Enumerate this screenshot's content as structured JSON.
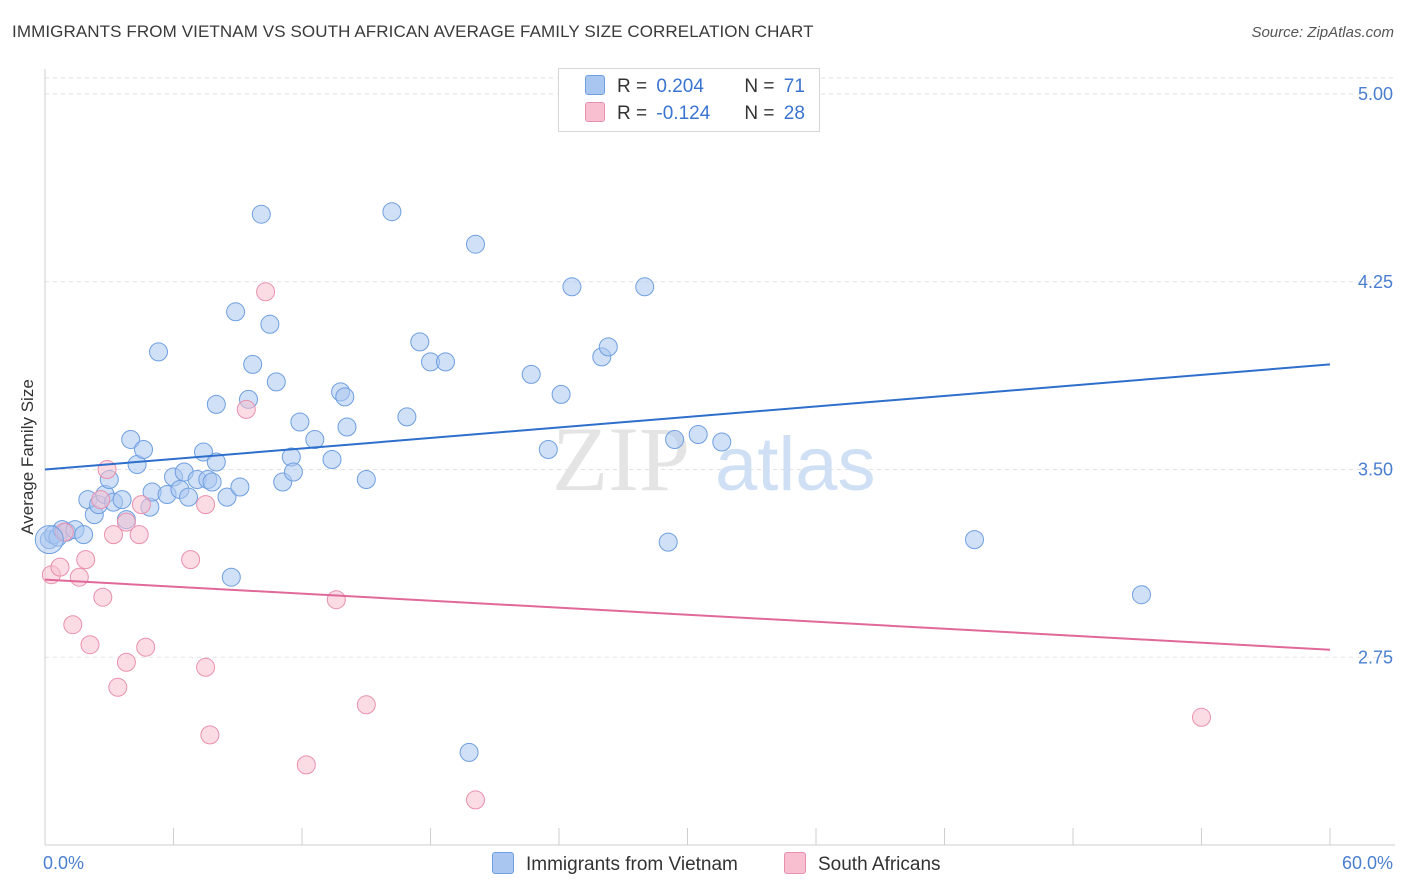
{
  "header": {
    "title": "IMMIGRANTS FROM VIETNAM VS SOUTH AFRICAN AVERAGE FAMILY SIZE CORRELATION CHART",
    "source": "Source: ZipAtlas.com"
  },
  "legend": {
    "rows": [
      {
        "r_label": "R =",
        "r_value": "0.204",
        "n_label": "N =",
        "n_value": "71"
      },
      {
        "r_label": "R =",
        "r_value": "-0.124",
        "n_label": "N =",
        "n_value": "28"
      }
    ]
  },
  "bottom_legend": {
    "items": [
      "Immigrants from Vietnam",
      "South Africans"
    ]
  },
  "watermark": {
    "part1": "ZIP",
    "part2": "atlas"
  },
  "colors": {
    "blue_fill": "#a9c6f0",
    "blue_stroke": "#6f9fe0",
    "blue_line": "#2f6fcc",
    "pink_fill": "#f7bfd0",
    "pink_stroke": "#e990ae",
    "pink_line": "#e0699a",
    "axis_text": "#4a7fd0",
    "grid": "#e2e2e2"
  },
  "chart_data": {
    "type": "scatter",
    "title": "IMMIGRANTS FROM VIETNAM VS SOUTH AFRICAN AVERAGE FAMILY SIZE CORRELATION CHART",
    "xlabel": "",
    "ylabel": "Average Family Size",
    "xlim": [
      0,
      60
    ],
    "ylim": [
      2.0,
      5.1
    ],
    "x_tick_labels": [
      "0.0%",
      "60.0%"
    ],
    "y_ticks": [
      2.75,
      3.5,
      4.25,
      5.0
    ],
    "y_tick_labels": [
      "2.75",
      "3.50",
      "4.25",
      "5.00"
    ],
    "grid": "horizontal dashed",
    "legend_position": "top-center",
    "series": [
      {
        "name": "Immigrants from Vietnam",
        "r": 0.204,
        "n": 71,
        "trend": {
          "x0": 0,
          "y0": 3.5,
          "x1": 60,
          "y1": 3.92
        },
        "points": [
          [
            0.2,
            3.22
          ],
          [
            0.4,
            3.24
          ],
          [
            0.6,
            3.23
          ],
          [
            0.8,
            3.26
          ],
          [
            1.0,
            3.25
          ],
          [
            1.4,
            3.26
          ],
          [
            1.8,
            3.24
          ],
          [
            2.0,
            3.38
          ],
          [
            2.3,
            3.32
          ],
          [
            2.5,
            3.36
          ],
          [
            2.8,
            3.4
          ],
          [
            3.0,
            3.46
          ],
          [
            3.2,
            3.37
          ],
          [
            3.6,
            3.38
          ],
          [
            3.8,
            3.3
          ],
          [
            4.0,
            3.62
          ],
          [
            4.3,
            3.52
          ],
          [
            4.6,
            3.58
          ],
          [
            4.9,
            3.35
          ],
          [
            5.0,
            3.41
          ],
          [
            5.3,
            3.97
          ],
          [
            5.7,
            3.4
          ],
          [
            6.0,
            3.47
          ],
          [
            6.3,
            3.42
          ],
          [
            6.5,
            3.49
          ],
          [
            6.7,
            3.39
          ],
          [
            7.1,
            3.46
          ],
          [
            7.4,
            3.57
          ],
          [
            7.6,
            3.46
          ],
          [
            7.8,
            3.45
          ],
          [
            8.0,
            3.53
          ],
          [
            8.0,
            3.76
          ],
          [
            8.5,
            3.39
          ],
          [
            8.9,
            4.13
          ],
          [
            9.1,
            3.43
          ],
          [
            9.5,
            3.78
          ],
          [
            9.7,
            3.92
          ],
          [
            10.1,
            4.52
          ],
          [
            10.5,
            4.08
          ],
          [
            10.8,
            3.85
          ],
          [
            11.1,
            3.45
          ],
          [
            11.5,
            3.55
          ],
          [
            11.6,
            3.49
          ],
          [
            11.9,
            3.69
          ],
          [
            12.6,
            3.62
          ],
          [
            13.4,
            3.54
          ],
          [
            13.8,
            3.81
          ],
          [
            14.0,
            3.79
          ],
          [
            14.1,
            3.67
          ],
          [
            15.0,
            3.46
          ],
          [
            16.2,
            4.53
          ],
          [
            16.9,
            3.71
          ],
          [
            17.5,
            4.01
          ],
          [
            18.0,
            3.93
          ],
          [
            18.7,
            3.93
          ],
          [
            20.1,
            4.4
          ],
          [
            22.7,
            3.88
          ],
          [
            23.5,
            3.58
          ],
          [
            24.1,
            3.8
          ],
          [
            24.6,
            4.23
          ],
          [
            26.0,
            3.95
          ],
          [
            26.3,
            3.99
          ],
          [
            28.0,
            4.23
          ],
          [
            29.1,
            3.21
          ],
          [
            29.4,
            3.62
          ],
          [
            30.5,
            3.64
          ],
          [
            31.6,
            3.61
          ],
          [
            43.4,
            3.22
          ],
          [
            51.2,
            3.0
          ],
          [
            8.7,
            3.07
          ],
          [
            19.8,
            2.37
          ]
        ]
      },
      {
        "name": "South Africans",
        "r": -0.124,
        "n": 28,
        "trend": {
          "x0": 0,
          "y0": 3.06,
          "x1": 60,
          "y1": 2.78
        },
        "points": [
          [
            0.3,
            3.08
          ],
          [
            0.7,
            3.11
          ],
          [
            0.9,
            3.25
          ],
          [
            1.3,
            2.88
          ],
          [
            1.6,
            3.07
          ],
          [
            1.9,
            3.14
          ],
          [
            2.1,
            2.8
          ],
          [
            2.6,
            3.38
          ],
          [
            2.7,
            2.99
          ],
          [
            2.9,
            3.5
          ],
          [
            3.2,
            3.24
          ],
          [
            3.4,
            2.63
          ],
          [
            3.8,
            3.29
          ],
          [
            3.8,
            2.73
          ],
          [
            4.4,
            3.24
          ],
          [
            4.5,
            3.36
          ],
          [
            4.7,
            2.79
          ],
          [
            7.5,
            3.36
          ],
          [
            7.5,
            2.71
          ],
          [
            7.7,
            2.44
          ],
          [
            9.4,
            3.74
          ],
          [
            10.3,
            4.21
          ],
          [
            12.2,
            2.32
          ],
          [
            13.6,
            2.98
          ],
          [
            15.0,
            2.56
          ],
          [
            20.1,
            2.18
          ],
          [
            54.0,
            2.51
          ],
          [
            6.8,
            3.14
          ]
        ]
      }
    ]
  }
}
